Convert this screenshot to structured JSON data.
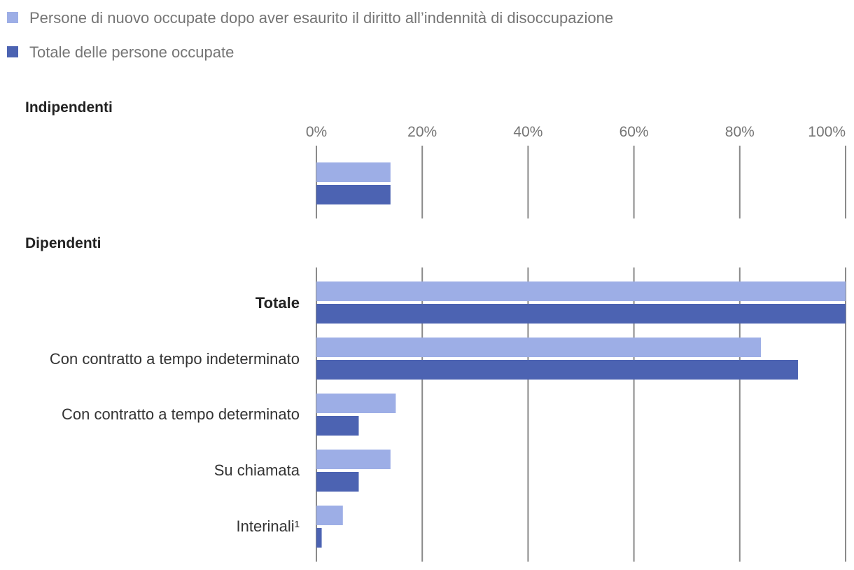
{
  "chart_data": {
    "type": "bar",
    "orientation": "horizontal",
    "colors": {
      "nuovo_occupate": "#9daee6",
      "totale_occupate": "#4c63b2",
      "gridline": "#8a8a8a"
    },
    "legend": [
      {
        "label": "Persone di nuovo occupate dopo aver esaurito il diritto all’indennità di disoccupazione",
        "color": "#9daee6"
      },
      {
        "label": "Totale delle persone occupate",
        "color": "#4c63b2"
      }
    ],
    "x_ticks": [
      "0%",
      "20%",
      "40%",
      "60%",
      "80%",
      "100%"
    ],
    "xlim": [
      0,
      100
    ],
    "series_names": [
      "Persone di nuovo occupate dopo aver esaurito il diritto all’indennità di disoccupazione",
      "Totale delle persone occupate"
    ],
    "groups": [
      {
        "title": "Indipendenti",
        "categories": [
          {
            "label": "",
            "bold": false,
            "values": [
              14,
              14
            ]
          }
        ]
      },
      {
        "title": "Dipendenti",
        "categories": [
          {
            "label": "Totale",
            "bold": true,
            "values": [
              100,
              100
            ]
          },
          {
            "label": "Con contratto a tempo indeterminato",
            "bold": false,
            "values": [
              84,
              91
            ]
          },
          {
            "label": "Con contratto a tempo determinato",
            "bold": false,
            "values": [
              15,
              8
            ]
          },
          {
            "label": "Su chiamata",
            "bold": false,
            "values": [
              14,
              8
            ]
          },
          {
            "label": "Interinali¹",
            "bold": false,
            "values": [
              5,
              1
            ]
          }
        ]
      }
    ]
  }
}
